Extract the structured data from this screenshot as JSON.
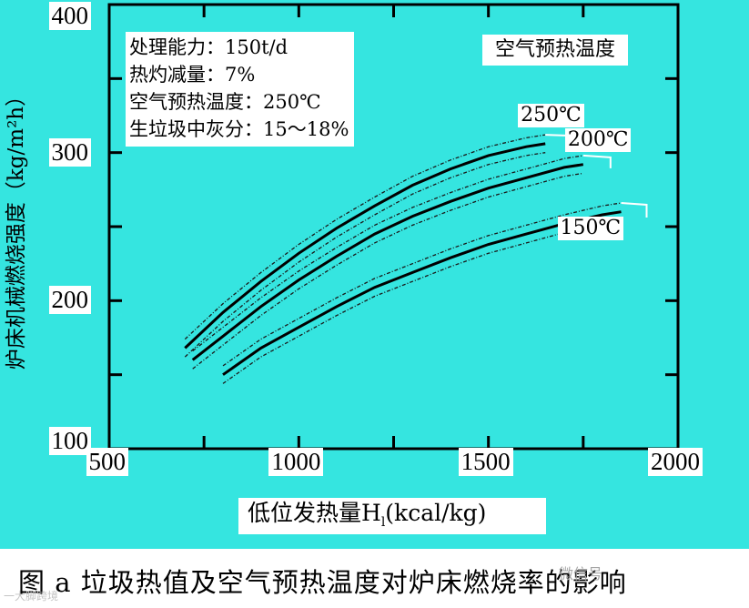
{
  "caption": "图 a  垃圾热值及空气预热温度对炉床燃烧率的影响",
  "watermark_left": "一大脚跨境",
  "watermark_right": "微信号",
  "chart_data": {
    "type": "line",
    "title": "",
    "xlabel_prefix": "低位发热量H",
    "xlabel_subscript": "l",
    "xlabel_suffix": "(kcal/kg)",
    "ylabel": "炉床机械燃烧强度（kg/m²h）",
    "xlim": [
      500,
      2000
    ],
    "ylim": [
      100,
      400
    ],
    "x_ticks": [
      500,
      1000,
      1500,
      2000
    ],
    "y_ticks": [
      100,
      200,
      300,
      400
    ],
    "grid": false,
    "legend_title": "空气预热温度",
    "annotations": [
      "处理能力：150t/d",
      "热灼减量：7%",
      "空气预热温度：250℃",
      "生垃圾中灰分：15～18%"
    ],
    "series": [
      {
        "name": "250℃",
        "x": [
          700,
          800,
          900,
          1000,
          1100,
          1200,
          1300,
          1400,
          1500,
          1600,
          1650
        ],
        "y": [
          168,
          192,
          213,
          232,
          249,
          264,
          278,
          289,
          298,
          304,
          306
        ],
        "band": 6,
        "color": "#000000"
      },
      {
        "name": "200℃",
        "x": [
          720,
          800,
          900,
          1000,
          1100,
          1200,
          1300,
          1400,
          1500,
          1600,
          1700,
          1750
        ],
        "y": [
          160,
          176,
          196,
          214,
          230,
          245,
          257,
          267,
          276,
          283,
          290,
          292
        ],
        "band": 6,
        "color": "#000000"
      },
      {
        "name": "150℃",
        "x": [
          800,
          900,
          1000,
          1100,
          1200,
          1300,
          1400,
          1500,
          1600,
          1700,
          1800,
          1850
        ],
        "y": [
          150,
          168,
          182,
          196,
          209,
          219,
          229,
          238,
          245,
          252,
          258,
          260
        ],
        "band": 6,
        "color": "#000000"
      }
    ]
  }
}
